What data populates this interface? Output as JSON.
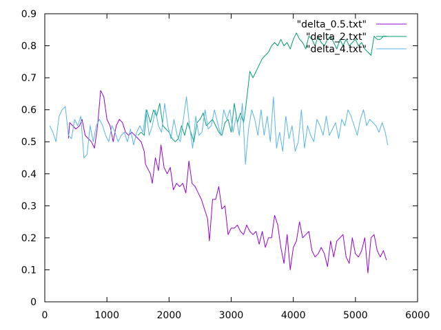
{
  "chart_data": {
    "type": "line",
    "title": "",
    "xlabel": "",
    "ylabel": "",
    "xlim": [
      0,
      6000
    ],
    "ylim": [
      0,
      0.9
    ],
    "xticks": [
      0,
      1000,
      2000,
      3000,
      4000,
      5000,
      6000
    ],
    "yticks": [
      0,
      0.1,
      0.2,
      0.3,
      0.4,
      0.5,
      0.6,
      0.7,
      0.8,
      0.9
    ],
    "xtick_labels": [
      "0",
      "1000",
      "2000",
      "3000",
      "4000",
      "5000",
      "6000"
    ],
    "ytick_labels": [
      "0",
      "0.1",
      "0.2",
      "0.3",
      "0.4",
      "0.5",
      "0.6",
      "0.7",
      "0.8",
      "0.9"
    ],
    "grid": false,
    "legend_position": "top-right",
    "series": [
      {
        "name": "\"delta_0.5.txt\"",
        "color": "#9400d3",
        "points": [
          [
            380,
            0.51
          ],
          [
            400,
            0.56
          ],
          [
            450,
            0.55
          ],
          [
            500,
            0.54
          ],
          [
            560,
            0.55
          ],
          [
            600,
            0.57
          ],
          [
            650,
            0.52
          ],
          [
            700,
            0.51
          ],
          [
            750,
            0.5
          ],
          [
            800,
            0.48
          ],
          [
            850,
            0.55
          ],
          [
            900,
            0.66
          ],
          [
            950,
            0.64
          ],
          [
            1000,
            0.57
          ],
          [
            1050,
            0.55
          ],
          [
            1100,
            0.5
          ],
          [
            1150,
            0.55
          ],
          [
            1200,
            0.57
          ],
          [
            1250,
            0.56
          ],
          [
            1300,
            0.53
          ],
          [
            1350,
            0.52
          ],
          [
            1400,
            0.53
          ],
          [
            1450,
            0.52
          ],
          [
            1500,
            0.51
          ],
          [
            1550,
            0.5
          ],
          [
            1600,
            0.47
          ],
          [
            1620,
            0.43
          ],
          [
            1700,
            0.4
          ],
          [
            1730,
            0.37
          ],
          [
            1780,
            0.45
          ],
          [
            1830,
            0.41
          ],
          [
            1870,
            0.49
          ],
          [
            1920,
            0.42
          ],
          [
            1970,
            0.4
          ],
          [
            2020,
            0.42
          ],
          [
            2070,
            0.35
          ],
          [
            2120,
            0.37
          ],
          [
            2170,
            0.36
          ],
          [
            2220,
            0.37
          ],
          [
            2270,
            0.34
          ],
          [
            2320,
            0.44
          ],
          [
            2370,
            0.37
          ],
          [
            2420,
            0.36
          ],
          [
            2470,
            0.34
          ],
          [
            2520,
            0.32
          ],
          [
            2570,
            0.29
          ],
          [
            2620,
            0.26
          ],
          [
            2650,
            0.19
          ],
          [
            2700,
            0.32
          ],
          [
            2750,
            0.32
          ],
          [
            2800,
            0.36
          ],
          [
            2850,
            0.29
          ],
          [
            2900,
            0.3
          ],
          [
            2950,
            0.21
          ],
          [
            3000,
            0.23
          ],
          [
            3050,
            0.23
          ],
          [
            3100,
            0.24
          ],
          [
            3150,
            0.22
          ],
          [
            3200,
            0.21
          ],
          [
            3250,
            0.24
          ],
          [
            3300,
            0.22
          ],
          [
            3350,
            0.21
          ],
          [
            3400,
            0.22
          ],
          [
            3450,
            0.18
          ],
          [
            3500,
            0.22
          ],
          [
            3550,
            0.17
          ],
          [
            3600,
            0.2
          ],
          [
            3650,
            0.2
          ],
          [
            3700,
            0.27
          ],
          [
            3750,
            0.24
          ],
          [
            3800,
            0.17
          ],
          [
            3850,
            0.12
          ],
          [
            3900,
            0.21
          ],
          [
            3950,
            0.1
          ],
          [
            4000,
            0.17
          ],
          [
            4050,
            0.19
          ],
          [
            4100,
            0.25
          ],
          [
            4150,
            0.2
          ],
          [
            4200,
            0.21
          ],
          [
            4250,
            0.22
          ],
          [
            4300,
            0.16
          ],
          [
            4350,
            0.14
          ],
          [
            4400,
            0.15
          ],
          [
            4450,
            0.17
          ],
          [
            4500,
            0.15
          ],
          [
            4550,
            0.11
          ],
          [
            4600,
            0.19
          ],
          [
            4650,
            0.14
          ],
          [
            4700,
            0.19
          ],
          [
            4750,
            0.2
          ],
          [
            4800,
            0.21
          ],
          [
            4850,
            0.14
          ],
          [
            4900,
            0.12
          ],
          [
            4950,
            0.2
          ],
          [
            5000,
            0.15
          ],
          [
            5050,
            0.14
          ],
          [
            5100,
            0.16
          ],
          [
            5150,
            0.2
          ],
          [
            5200,
            0.09
          ],
          [
            5250,
            0.2
          ],
          [
            5300,
            0.21
          ],
          [
            5350,
            0.16
          ],
          [
            5400,
            0.14
          ],
          [
            5450,
            0.16
          ],
          [
            5500,
            0.13
          ]
        ]
      },
      {
        "name": "\"delta_2.txt\"",
        "color": "#009e73",
        "points": [
          [
            1500,
            0.52
          ],
          [
            1550,
            0.53
          ],
          [
            1600,
            0.52
          ],
          [
            1640,
            0.6
          ],
          [
            1700,
            0.56
          ],
          [
            1750,
            0.6
          ],
          [
            1800,
            0.58
          ],
          [
            1850,
            0.62
          ],
          [
            1900,
            0.55
          ],
          [
            1950,
            0.54
          ],
          [
            2000,
            0.53
          ],
          [
            2050,
            0.51
          ],
          [
            2100,
            0.5
          ],
          [
            2150,
            0.51
          ],
          [
            2200,
            0.55
          ],
          [
            2250,
            0.52
          ],
          [
            2300,
            0.56
          ],
          [
            2350,
            0.53
          ],
          [
            2400,
            0.5
          ],
          [
            2450,
            0.56
          ],
          [
            2500,
            0.57
          ],
          [
            2550,
            0.59
          ],
          [
            2600,
            0.55
          ],
          [
            2650,
            0.56
          ],
          [
            2700,
            0.57
          ],
          [
            2750,
            0.55
          ],
          [
            2800,
            0.53
          ],
          [
            2850,
            0.52
          ],
          [
            2900,
            0.56
          ],
          [
            2950,
            0.57
          ],
          [
            3000,
            0.53
          ],
          [
            3050,
            0.62
          ],
          [
            3100,
            0.56
          ],
          [
            3150,
            0.59
          ],
          [
            3200,
            0.56
          ],
          [
            3230,
            0.6
          ],
          [
            3260,
            0.65
          ],
          [
            3300,
            0.72
          ],
          [
            3350,
            0.7
          ],
          [
            3400,
            0.72
          ],
          [
            3450,
            0.74
          ],
          [
            3500,
            0.76
          ],
          [
            3550,
            0.77
          ],
          [
            3600,
            0.78
          ],
          [
            3650,
            0.8
          ],
          [
            3700,
            0.81
          ],
          [
            3750,
            0.8
          ],
          [
            3800,
            0.82
          ],
          [
            3850,
            0.8
          ],
          [
            3900,
            0.81
          ],
          [
            3950,
            0.79
          ],
          [
            4000,
            0.82
          ],
          [
            4050,
            0.84
          ],
          [
            4100,
            0.82
          ],
          [
            4150,
            0.81
          ],
          [
            4200,
            0.79
          ],
          [
            4250,
            0.83
          ],
          [
            4300,
            0.82
          ],
          [
            4350,
            0.8
          ],
          [
            4400,
            0.83
          ],
          [
            4450,
            0.81
          ],
          [
            4500,
            0.8
          ],
          [
            4550,
            0.82
          ],
          [
            4600,
            0.83
          ],
          [
            4650,
            0.81
          ],
          [
            4700,
            0.79
          ],
          [
            4750,
            0.82
          ],
          [
            4800,
            0.8
          ],
          [
            4850,
            0.82
          ],
          [
            4900,
            0.8
          ],
          [
            4950,
            0.81
          ],
          [
            5000,
            0.82
          ],
          [
            5050,
            0.8
          ],
          [
            5100,
            0.81
          ],
          [
            5150,
            0.79
          ],
          [
            5200,
            0.78
          ],
          [
            5250,
            0.77
          ],
          [
            5300,
            0.83
          ],
          [
            5350,
            0.82
          ],
          [
            5400,
            0.82
          ],
          [
            5450,
            0.83
          ],
          [
            5500,
            0.83
          ]
        ]
      },
      {
        "name": "\"delta_4.txt\"",
        "color": "#56b4e9",
        "points": [
          [
            80,
            0.55
          ],
          [
            130,
            0.53
          ],
          [
            180,
            0.5
          ],
          [
            230,
            0.58
          ],
          [
            280,
            0.6
          ],
          [
            330,
            0.61
          ],
          [
            380,
            0.52
          ],
          [
            430,
            0.51
          ],
          [
            480,
            0.57
          ],
          [
            530,
            0.55
          ],
          [
            580,
            0.58
          ],
          [
            630,
            0.45
          ],
          [
            680,
            0.46
          ],
          [
            730,
            0.55
          ],
          [
            780,
            0.5
          ],
          [
            830,
            0.55
          ],
          [
            880,
            0.57
          ],
          [
            930,
            0.55
          ],
          [
            980,
            0.52
          ],
          [
            1030,
            0.5
          ],
          [
            1080,
            0.55
          ],
          [
            1130,
            0.53
          ],
          [
            1180,
            0.5
          ],
          [
            1230,
            0.52
          ],
          [
            1280,
            0.53
          ],
          [
            1330,
            0.5
          ],
          [
            1380,
            0.54
          ],
          [
            1430,
            0.49
          ],
          [
            1480,
            0.53
          ],
          [
            1530,
            0.55
          ],
          [
            1580,
            0.53
          ],
          [
            1630,
            0.6
          ],
          [
            1680,
            0.52
          ],
          [
            1730,
            0.55
          ],
          [
            1780,
            0.6
          ],
          [
            1830,
            0.55
          ],
          [
            1880,
            0.53
          ],
          [
            1930,
            0.62
          ],
          [
            1980,
            0.55
          ],
          [
            2030,
            0.51
          ],
          [
            2080,
            0.57
          ],
          [
            2130,
            0.52
          ],
          [
            2180,
            0.5
          ],
          [
            2230,
            0.57
          ],
          [
            2280,
            0.64
          ],
          [
            2330,
            0.55
          ],
          [
            2380,
            0.48
          ],
          [
            2430,
            0.58
          ],
          [
            2480,
            0.52
          ],
          [
            2530,
            0.53
          ],
          [
            2580,
            0.6
          ],
          [
            2630,
            0.54
          ],
          [
            2680,
            0.55
          ],
          [
            2730,
            0.6
          ],
          [
            2780,
            0.56
          ],
          [
            2830,
            0.52
          ],
          [
            2880,
            0.6
          ],
          [
            2930,
            0.57
          ],
          [
            2980,
            0.6
          ],
          [
            3030,
            0.53
          ],
          [
            3080,
            0.58
          ],
          [
            3130,
            0.52
          ],
          [
            3180,
            0.62
          ],
          [
            3230,
            0.43
          ],
          [
            3280,
            0.54
          ],
          [
            3330,
            0.6
          ],
          [
            3380,
            0.57
          ],
          [
            3430,
            0.52
          ],
          [
            3480,
            0.6
          ],
          [
            3530,
            0.52
          ],
          [
            3580,
            0.58
          ],
          [
            3630,
            0.5
          ],
          [
            3680,
            0.64
          ],
          [
            3730,
            0.48
          ],
          [
            3780,
            0.53
          ],
          [
            3830,
            0.47
          ],
          [
            3880,
            0.58
          ],
          [
            3930,
            0.51
          ],
          [
            3980,
            0.55
          ],
          [
            4030,
            0.47
          ],
          [
            4080,
            0.5
          ],
          [
            4130,
            0.6
          ],
          [
            4180,
            0.48
          ],
          [
            4230,
            0.55
          ],
          [
            4280,
            0.52
          ],
          [
            4330,
            0.5
          ],
          [
            4380,
            0.57
          ],
          [
            4430,
            0.55
          ],
          [
            4480,
            0.52
          ],
          [
            4530,
            0.58
          ],
          [
            4580,
            0.52
          ],
          [
            4630,
            0.54
          ],
          [
            4680,
            0.56
          ],
          [
            4730,
            0.51
          ],
          [
            4780,
            0.57
          ],
          [
            4830,
            0.55
          ],
          [
            4880,
            0.6
          ],
          [
            4930,
            0.58
          ],
          [
            4980,
            0.55
          ],
          [
            5030,
            0.52
          ],
          [
            5080,
            0.57
          ],
          [
            5130,
            0.6
          ],
          [
            5180,
            0.55
          ],
          [
            5230,
            0.57
          ],
          [
            5280,
            0.56
          ],
          [
            5330,
            0.55
          ],
          [
            5380,
            0.53
          ],
          [
            5430,
            0.56
          ],
          [
            5480,
            0.53
          ],
          [
            5520,
            0.49
          ]
        ]
      }
    ]
  }
}
